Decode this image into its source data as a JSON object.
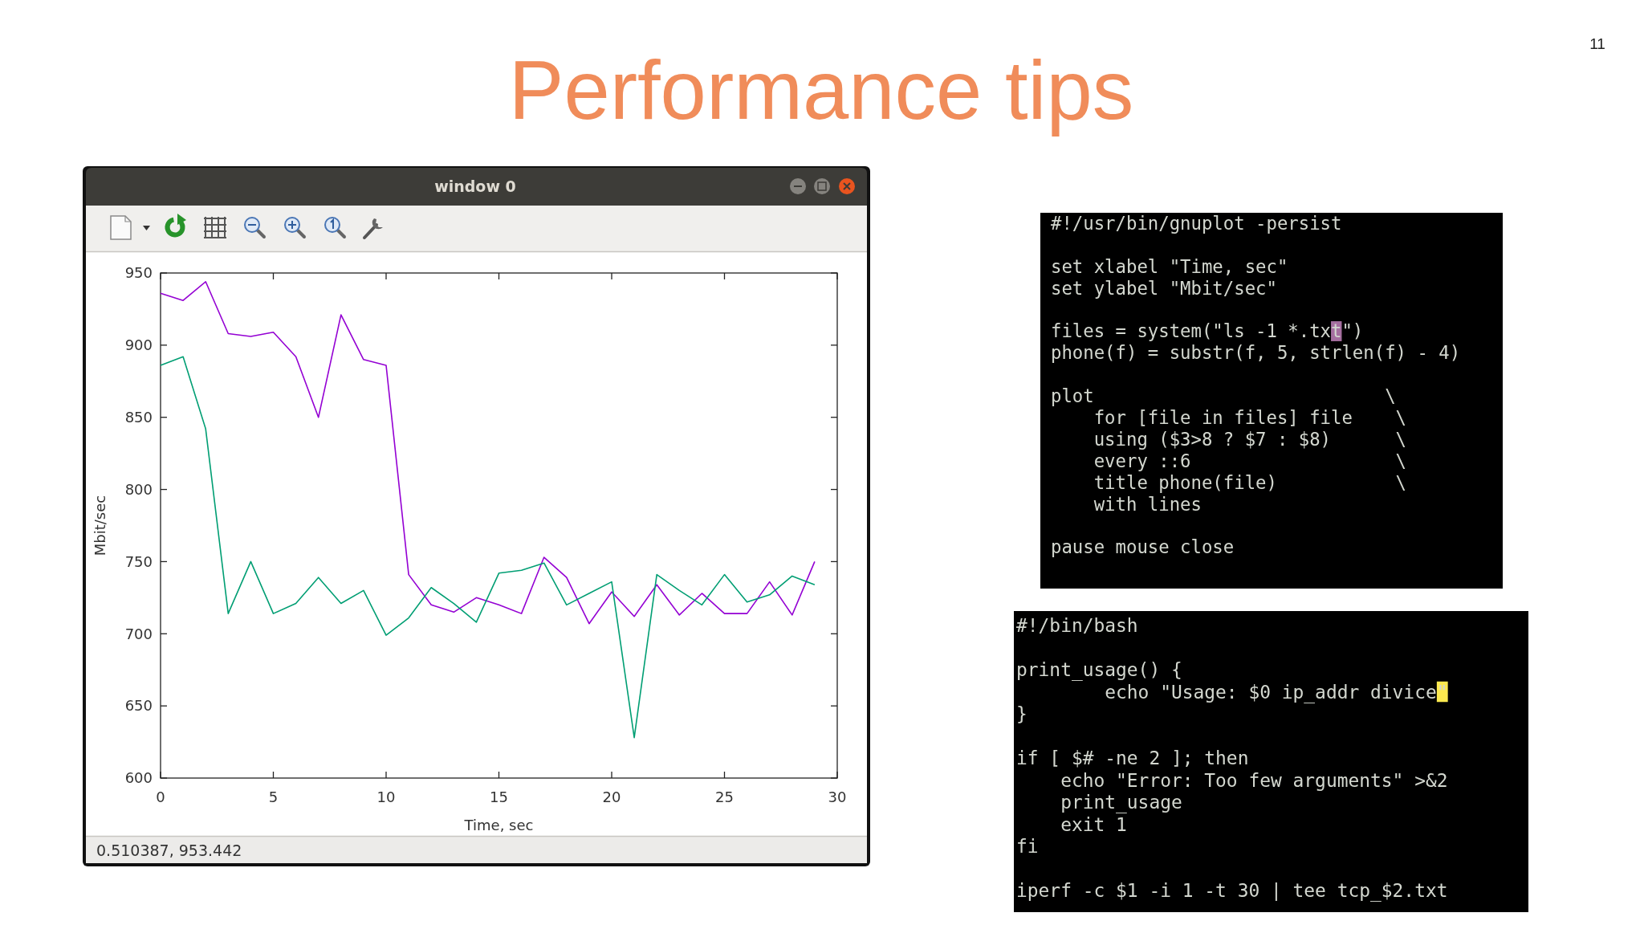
{
  "chart_data": {
    "type": "line",
    "title": "Performance tips",
    "xlabel": "Time, sec",
    "ylabel": "Mbit/sec",
    "x": [
      0,
      1,
      2,
      3,
      4,
      5,
      6,
      7,
      8,
      9,
      10,
      11,
      12,
      13,
      14,
      15,
      16,
      17,
      18,
      19,
      20,
      21,
      22,
      23,
      24,
      25,
      26,
      27,
      28,
      29
    ],
    "series": [
      {
        "color": "#9400d3",
        "values": [
          936,
          931,
          944,
          908,
          906,
          909,
          892,
          850,
          921,
          890,
          886,
          741,
          720,
          715,
          725,
          720,
          714,
          753,
          739,
          707,
          729,
          712,
          734,
          713,
          728,
          714,
          714,
          736,
          713,
          750
        ]
      },
      {
        "color": "#009e73",
        "values": [
          886,
          892,
          842,
          714,
          750,
          714,
          721,
          739,
          721,
          730,
          699,
          711,
          732,
          721,
          708,
          742,
          744,
          749,
          720,
          728,
          736,
          628,
          741,
          730,
          720,
          741,
          722,
          727,
          740,
          734
        ]
      }
    ],
    "xlim": [
      0,
      30
    ],
    "ylim": [
      600,
      950
    ],
    "xticks": [
      0,
      5,
      10,
      15,
      20,
      25,
      30
    ],
    "yticks": [
      600,
      650,
      700,
      750,
      800,
      850,
      900,
      950
    ],
    "annotations": [
      "11",
      "window 0",
      "0.510387, 953.442",
      "#!/usr/bin/gnuplot -persist\n\nset xlabel \"Time, sec\"\nset ylabel \"Mbit/sec\"\n\nfiles = system(\"ls -1 *.txt\")\nphone(f) = substr(f, 5, strlen(f) - 4)\n\nplot                           \\\n    for [file in files] file    \\\n    using ($3>8 ? $7 : $8)      \\\n    every ::6                   \\\n    title phone(file)           \\\n    with lines\n\npause mouse close",
      "#!/bin/bash\n\nprint_usage() {\n        echo \"Usage: $0 ip_addr divice\"\n}\n\nif [ $# -ne 2 ]; then\n    echo \"Error: Too few arguments\" >&2\n    print_usage\n    exit 1\nfi\n\niperf -c $1 -i 1 -t 30 | tee tcp_$2.txt"
    ]
  }
}
